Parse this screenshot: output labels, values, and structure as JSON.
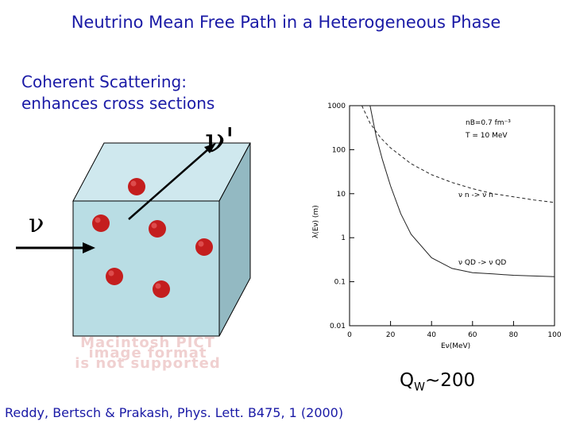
{
  "slide": {
    "title": "Neutrino Mean Free Path in a Heterogeneous Phase",
    "subtitle_line1": "Coherent Scattering:",
    "subtitle_line2": "enhances cross sections",
    "nu_prime": "ν'",
    "nu": "ν",
    "qw_base": "Q",
    "qw_sub": "W",
    "qw_rest": "~200",
    "citation": "Reddy, Bertsch & Prakash, Phys. Lett. B475, 1 (2000)",
    "pict_placeholder": [
      "Macintosh PICT",
      "image format",
      "is not supported"
    ],
    "colors": {
      "text_blue": "#1a1aa6",
      "cube_front": "#b9dde4",
      "cube_side": "#93b9c2",
      "sphere": "#c41e1e"
    }
  },
  "chart_data": {
    "type": "line",
    "xlabel": "Eν(MeV)",
    "ylabel": "λ(Eν) (m)",
    "xlim": [
      0,
      100
    ],
    "ylim": [
      0.01,
      1000
    ],
    "yscale": "log",
    "xticks": [
      "0",
      "20",
      "40",
      "60",
      "80",
      "100"
    ],
    "yticks": [
      "0.01",
      "0.1",
      "1",
      "10",
      "100",
      "1000"
    ],
    "annotation_line1": "nB=0.7 fm⁻³",
    "annotation_line2": "T = 10 MeV",
    "series": [
      {
        "name": "ν n → ν n",
        "style": "dashed",
        "x": [
          6,
          10,
          15,
          20,
          30,
          40,
          50,
          60,
          70,
          80,
          90,
          100
        ],
        "y": [
          1000,
          400,
          190,
          110,
          48,
          27,
          18,
          13,
          10,
          8.5,
          7.2,
          6.3
        ]
      },
      {
        "name": "ν QD → ν QD",
        "style": "solid",
        "x": [
          10,
          13,
          16,
          20,
          25,
          30,
          40,
          50,
          60,
          70,
          80,
          90,
          100
        ],
        "y": [
          1000,
          200,
          60,
          15,
          3.5,
          1.2,
          0.35,
          0.2,
          0.16,
          0.15,
          0.14,
          0.135,
          0.13
        ]
      }
    ],
    "legend_labels": [
      "ν n -> ν n",
      "ν QD -> ν QD"
    ]
  }
}
